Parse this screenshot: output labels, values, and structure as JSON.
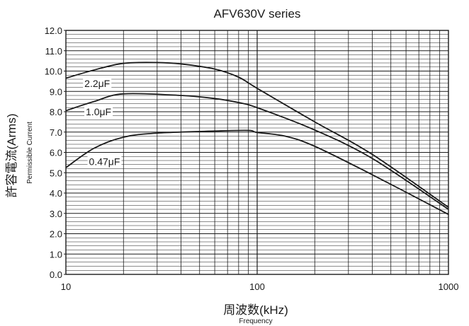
{
  "chart_data": {
    "type": "line",
    "title": "AFV630V series",
    "xlabel": "周波数(kHz)",
    "xlabel_sub": "Frequency",
    "ylabel": "許容電流(Arms)",
    "ylabel_sub": "Permissible Current",
    "x_scale": "log",
    "xlim": [
      10,
      1000
    ],
    "ylim": [
      0.0,
      12.0
    ],
    "grid": true,
    "x_ticks": [
      {
        "value": 10,
        "label": "10"
      },
      {
        "value": 100,
        "label": "100"
      },
      {
        "value": 1000,
        "label": "1000"
      }
    ],
    "y_ticks": [
      {
        "value": 0.0,
        "label": "0.0"
      },
      {
        "value": 1.0,
        "label": "1.0"
      },
      {
        "value": 2.0,
        "label": "2.0"
      },
      {
        "value": 3.0,
        "label": "3.0"
      },
      {
        "value": 4.0,
        "label": "4.0"
      },
      {
        "value": 5.0,
        "label": "5.0"
      },
      {
        "value": 6.0,
        "label": "6.0"
      },
      {
        "value": 7.0,
        "label": "7.0"
      },
      {
        "value": 8.0,
        "label": "8.0"
      },
      {
        "value": 9.0,
        "label": "9.0"
      },
      {
        "value": 10.0,
        "label": "10.0"
      },
      {
        "value": 11.0,
        "label": "11.0"
      },
      {
        "value": 12.0,
        "label": "12.0"
      }
    ],
    "series": [
      {
        "name": "2.2μF",
        "label_at": {
          "x": 12.5,
          "y": 9.4
        },
        "points": [
          {
            "x": 10,
            "y": 9.65
          },
          {
            "x": 14,
            "y": 10.05
          },
          {
            "x": 20,
            "y": 10.38
          },
          {
            "x": 30,
            "y": 10.42
          },
          {
            "x": 40,
            "y": 10.35
          },
          {
            "x": 60,
            "y": 10.1
          },
          {
            "x": 80,
            "y": 9.7
          },
          {
            "x": 100,
            "y": 9.15
          },
          {
            "x": 200,
            "y": 7.5
          },
          {
            "x": 400,
            "y": 5.9
          },
          {
            "x": 1000,
            "y": 3.3
          }
        ]
      },
      {
        "name": "1.0μF",
        "label_at": {
          "x": 12.7,
          "y": 8.0
        },
        "points": [
          {
            "x": 10,
            "y": 8.05
          },
          {
            "x": 14,
            "y": 8.5
          },
          {
            "x": 20,
            "y": 8.88
          },
          {
            "x": 40,
            "y": 8.8
          },
          {
            "x": 60,
            "y": 8.65
          },
          {
            "x": 80,
            "y": 8.45
          },
          {
            "x": 100,
            "y": 8.2
          },
          {
            "x": 200,
            "y": 7.1
          },
          {
            "x": 400,
            "y": 5.7
          },
          {
            "x": 1000,
            "y": 3.2
          }
        ]
      },
      {
        "name": "0.47μF",
        "label_at": {
          "x": 13.2,
          "y": 5.55
        },
        "points": [
          {
            "x": 10,
            "y": 5.25
          },
          {
            "x": 14,
            "y": 6.2
          },
          {
            "x": 20,
            "y": 6.75
          },
          {
            "x": 30,
            "y": 6.95
          },
          {
            "x": 60,
            "y": 7.05
          },
          {
            "x": 90,
            "y": 7.08
          },
          {
            "x": 100,
            "y": 6.98
          },
          {
            "x": 140,
            "y": 6.8
          },
          {
            "x": 200,
            "y": 6.3
          },
          {
            "x": 400,
            "y": 4.9
          },
          {
            "x": 1000,
            "y": 2.95
          }
        ]
      }
    ],
    "colors": {
      "line": "#1a1a1a",
      "grid": "#1a1a1a",
      "background": "#ffffff"
    }
  }
}
